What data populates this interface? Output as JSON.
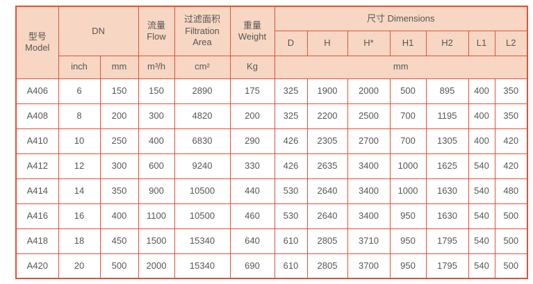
{
  "colors": {
    "border": "#e25036",
    "header_bg": "#f7d7c3",
    "text": "#555555",
    "page_bg": "#ffffff"
  },
  "table": {
    "header": {
      "model": "型号\nModel",
      "dn": "DN",
      "flow": "流量\nFlow",
      "filtration_area": "过滤面积\nFiltration\nArea",
      "weight": "重量\nWeight",
      "dimensions": "尺寸 Dimensions",
      "dim_cols": [
        "D",
        "H",
        "H*",
        "H1",
        "H2",
        "L1",
        "L2"
      ],
      "units": {
        "inch": "inch",
        "mm": "mm",
        "flow": "m³/h",
        "filtration_area": "cm²",
        "weight": "Kg",
        "dimensions": "mm"
      }
    },
    "column_keys": [
      "model",
      "dn-inch",
      "dn-mm",
      "flow",
      "filtration-area",
      "weight",
      "d",
      "h",
      "h-star",
      "h1",
      "h2",
      "l1",
      "l2"
    ],
    "rows": [
      [
        "A406",
        "6",
        "150",
        "150",
        "2890",
        "175",
        "325",
        "1900",
        "2000",
        "500",
        "895",
        "400",
        "350"
      ],
      [
        "A408",
        "8",
        "200",
        "300",
        "4820",
        "200",
        "325",
        "2200",
        "2500",
        "700",
        "1195",
        "400",
        "350"
      ],
      [
        "A410",
        "10",
        "250",
        "400",
        "6830",
        "290",
        "426",
        "2305",
        "2700",
        "700",
        "1305",
        "400",
        "420"
      ],
      [
        "A412",
        "12",
        "300",
        "600",
        "9240",
        "330",
        "426",
        "2635",
        "3400",
        "1000",
        "1625",
        "540",
        "420"
      ],
      [
        "A414",
        "14",
        "350",
        "900",
        "10500",
        "440",
        "530",
        "2640",
        "3400",
        "1000",
        "1630",
        "540",
        "480"
      ],
      [
        "A416",
        "16",
        "400",
        "1100",
        "10500",
        "460",
        "530",
        "2640",
        "3400",
        "950",
        "1630",
        "540",
        "500"
      ],
      [
        "A418",
        "18",
        "450",
        "1500",
        "15340",
        "640",
        "610",
        "2805",
        "3710",
        "950",
        "1795",
        "540",
        "500"
      ],
      [
        "A420",
        "20",
        "500",
        "2000",
        "15340",
        "690",
        "610",
        "2805",
        "3700",
        "950",
        "1795",
        "540",
        "500"
      ]
    ]
  }
}
